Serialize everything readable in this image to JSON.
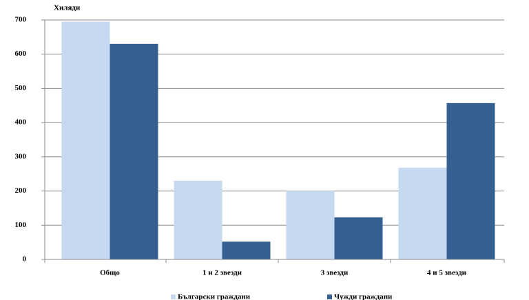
{
  "chart_data": {
    "type": "bar",
    "y_label": "Хиляди",
    "categories": [
      "Общо",
      "1 и 2 звезди",
      "3 звезди",
      "4 и 5 звезди"
    ],
    "series": [
      {
        "name": "Български граждани",
        "color": "#c6d9f1",
        "values": [
          695,
          230,
          200,
          268
        ]
      },
      {
        "name": "Чужди граждани",
        "color": "#366092",
        "values": [
          630,
          52,
          123,
          457
        ]
      }
    ],
    "ylim": [
      0,
      700
    ],
    "yticks": [
      0,
      100,
      200,
      300,
      400,
      500,
      600,
      700
    ],
    "grid": true,
    "legend": "bottom"
  }
}
